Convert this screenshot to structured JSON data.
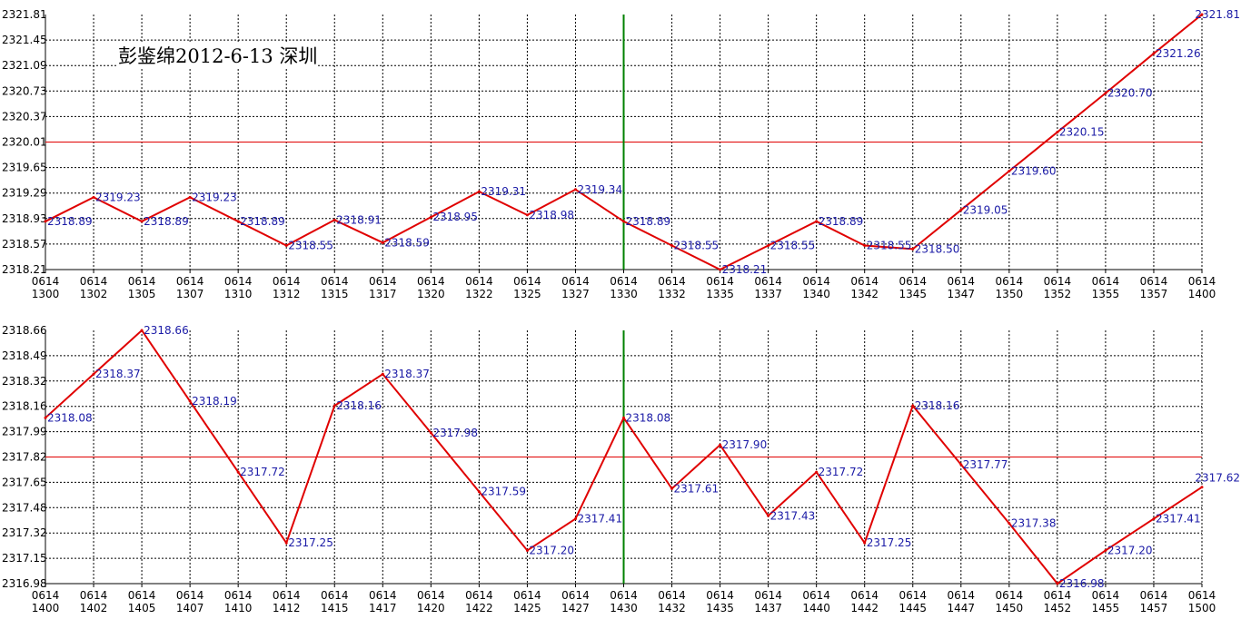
{
  "title": "彭鉴绵2012-6-13 深圳",
  "colors": {
    "series": "#e00000",
    "reference_line": "#e00000",
    "marker_line": "#008000",
    "data_label": "#1a1aa6",
    "grid": "#000000"
  },
  "chart_data": [
    {
      "type": "line",
      "panel": "top",
      "x_ticks": [
        "0614 1300",
        "0614 1302",
        "0614 1305",
        "0614 1307",
        "0614 1310",
        "0614 1312",
        "0614 1315",
        "0614 1317",
        "0614 1320",
        "0614 1322",
        "0614 1325",
        "0614 1327",
        "0614 1330",
        "0614 1332",
        "0614 1335",
        "0614 1337",
        "0614 1340",
        "0614 1342",
        "0614 1345",
        "0614 1347",
        "0614 1350",
        "0614 1352",
        "0614 1355",
        "0614 1357",
        "0614 1400"
      ],
      "y_ticks": [
        "2318.21",
        "2318.57",
        "2318.93",
        "2319.29",
        "2319.65",
        "2320.01",
        "2320.37",
        "2320.73",
        "2321.09",
        "2321.45",
        "2321.81"
      ],
      "ylim": [
        2318.21,
        2321.81
      ],
      "points": [
        {
          "x": 0,
          "y": 2318.89,
          "label": "2318.89"
        },
        {
          "x": 1,
          "y": 2319.23,
          "label": "2319.23"
        },
        {
          "x": 2,
          "y": 2318.89,
          "label": "2318.89"
        },
        {
          "x": 3,
          "y": 2319.23,
          "label": "2319.23"
        },
        {
          "x": 4,
          "y": 2318.89,
          "label": "2318.89"
        },
        {
          "x": 5,
          "y": 2318.55,
          "label": "2318.55"
        },
        {
          "x": 6,
          "y": 2318.91,
          "label": "2318.91"
        },
        {
          "x": 7,
          "y": 2318.59,
          "label": "2318.59"
        },
        {
          "x": 8,
          "y": 2318.95,
          "label": "2318.95"
        },
        {
          "x": 9,
          "y": 2319.31,
          "label": "2319.31"
        },
        {
          "x": 10,
          "y": 2318.98,
          "label": "2318.98"
        },
        {
          "x": 11,
          "y": 2319.34,
          "label": "2319.34"
        },
        {
          "x": 12,
          "y": 2318.89,
          "label": "2318.89"
        },
        {
          "x": 13,
          "y": 2318.55,
          "label": "2318.55"
        },
        {
          "x": 14,
          "y": 2318.21,
          "label": "2318.21"
        },
        {
          "x": 15,
          "y": 2318.55,
          "label": "2318.55"
        },
        {
          "x": 16,
          "y": 2318.89,
          "label": "2318.89"
        },
        {
          "x": 17,
          "y": 2318.55,
          "label": "2318.55"
        },
        {
          "x": 18,
          "y": 2318.5,
          "label": "2318.50"
        },
        {
          "x": 19,
          "y": 2319.05,
          "label": "2319.05"
        },
        {
          "x": 20,
          "y": 2319.6,
          "label": "2319.60"
        },
        {
          "x": 21,
          "y": 2320.15,
          "label": "2320.15"
        },
        {
          "x": 22,
          "y": 2320.7,
          "label": "2320.70"
        },
        {
          "x": 23,
          "y": 2321.26,
          "label": "2321.26"
        },
        {
          "x": 24,
          "y": 2321.81,
          "label": "2321.81"
        }
      ],
      "reference_y": 2320.01,
      "marker_x": 12
    },
    {
      "type": "line",
      "panel": "bottom",
      "x_ticks": [
        "0614 1400",
        "0614 1402",
        "0614 1405",
        "0614 1407",
        "0614 1410",
        "0614 1412",
        "0614 1415",
        "0614 1417",
        "0614 1420",
        "0614 1422",
        "0614 1425",
        "0614 1427",
        "0614 1430",
        "0614 1432",
        "0614 1435",
        "0614 1437",
        "0614 1440",
        "0614 1442",
        "0614 1445",
        "0614 1447",
        "0614 1450",
        "0614 1452",
        "0614 1455",
        "0614 1457",
        "0614 1500"
      ],
      "y_ticks": [
        "2316.98",
        "2317.15",
        "2317.32",
        "2317.48",
        "2317.65",
        "2317.82",
        "2317.99",
        "2318.16",
        "2318.32",
        "2318.49",
        "2318.66"
      ],
      "ylim": [
        2316.98,
        2318.66
      ],
      "points": [
        {
          "x": 0,
          "y": 2318.08,
          "label": "2318.08"
        },
        {
          "x": 1,
          "y": 2318.37,
          "label": "2318.37"
        },
        {
          "x": 2,
          "y": 2318.66,
          "label": "2318.66"
        },
        {
          "x": 3,
          "y": 2318.19,
          "label": "2318.19"
        },
        {
          "x": 4,
          "y": 2317.72,
          "label": "2317.72"
        },
        {
          "x": 5,
          "y": 2317.25,
          "label": "2317.25"
        },
        {
          "x": 6,
          "y": 2318.16,
          "label": "2318.16"
        },
        {
          "x": 7,
          "y": 2318.37,
          "label": "2318.37"
        },
        {
          "x": 8,
          "y": 2317.98,
          "label": "2317.98"
        },
        {
          "x": 9,
          "y": 2317.59,
          "label": "2317.59"
        },
        {
          "x": 10,
          "y": 2317.2,
          "label": "2317.20"
        },
        {
          "x": 11,
          "y": 2317.41,
          "label": "2317.41"
        },
        {
          "x": 12,
          "y": 2318.08,
          "label": "2318.08"
        },
        {
          "x": 13,
          "y": 2317.61,
          "label": "2317.61"
        },
        {
          "x": 14,
          "y": 2317.9,
          "label": "2317.90"
        },
        {
          "x": 15,
          "y": 2317.43,
          "label": "2317.43"
        },
        {
          "x": 16,
          "y": 2317.72,
          "label": "2317.72"
        },
        {
          "x": 17,
          "y": 2317.25,
          "label": "2317.25"
        },
        {
          "x": 18,
          "y": 2318.16,
          "label": "2318.16"
        },
        {
          "x": 19,
          "y": 2317.77,
          "label": "2317.77"
        },
        {
          "x": 20,
          "y": 2317.38,
          "label": "2317.38"
        },
        {
          "x": 21,
          "y": 2316.98,
          "label": "2316.98"
        },
        {
          "x": 22,
          "y": 2317.2,
          "label": "2317.20"
        },
        {
          "x": 23,
          "y": 2317.41,
          "label": "2317.41"
        },
        {
          "x": 24,
          "y": 2317.62,
          "label": "2317.62"
        }
      ],
      "reference_y": 2317.82,
      "marker_x": 12
    }
  ]
}
